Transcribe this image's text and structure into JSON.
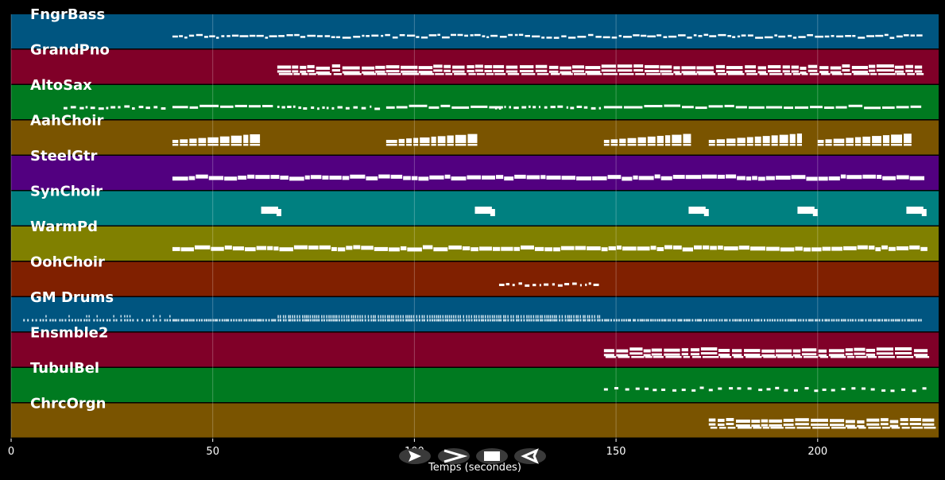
{
  "app": {
    "background": "#000000"
  },
  "timeline": {
    "x_label": "Temps (secondes)",
    "x_range": [
      0,
      230
    ],
    "ticks": [
      {
        "value": 0,
        "label": "0"
      },
      {
        "value": 50,
        "label": "50"
      },
      {
        "value": 100,
        "label": "100"
      },
      {
        "value": 150,
        "label": "150"
      },
      {
        "value": 200,
        "label": "200"
      }
    ],
    "grid": true
  },
  "tracks": [
    {
      "name": "FngrBass",
      "color": "#005580",
      "segments": [
        {
          "start": 40,
          "end": 226,
          "style": "dense"
        }
      ]
    },
    {
      "name": "GrandPno",
      "color": "#800028",
      "segments": [
        {
          "start": 66,
          "end": 226,
          "style": "chords"
        }
      ]
    },
    {
      "name": "AltoSax",
      "color": "#007a20",
      "segments": [
        {
          "start": 13,
          "end": 38,
          "style": "dots"
        },
        {
          "start": 40,
          "end": 65,
          "style": "line"
        },
        {
          "start": 66,
          "end": 92,
          "style": "dots"
        },
        {
          "start": 93,
          "end": 119,
          "style": "line"
        },
        {
          "start": 120,
          "end": 146,
          "style": "dots"
        },
        {
          "start": 147,
          "end": 225,
          "style": "line"
        }
      ]
    },
    {
      "name": "AahChoir",
      "color": "#7a5400",
      "segments": [
        {
          "start": 40,
          "end": 62,
          "style": "blocks"
        },
        {
          "start": 93,
          "end": 115,
          "style": "blocks"
        },
        {
          "start": 147,
          "end": 168,
          "style": "blocks"
        },
        {
          "start": 173,
          "end": 195,
          "style": "blocks"
        },
        {
          "start": 200,
          "end": 222,
          "style": "blocks"
        }
      ]
    },
    {
      "name": "SteelGtr",
      "color": "#520080",
      "segments": [
        {
          "start": 40,
          "end": 226,
          "style": "thick"
        }
      ]
    },
    {
      "name": "SynChoir",
      "color": "#008080",
      "segments": [
        {
          "start": 62,
          "end": 67,
          "style": "pad"
        },
        {
          "start": 115,
          "end": 120,
          "style": "pad"
        },
        {
          "start": 168,
          "end": 173,
          "style": "pad"
        },
        {
          "start": 195,
          "end": 200,
          "style": "pad"
        },
        {
          "start": 222,
          "end": 227,
          "style": "pad"
        }
      ]
    },
    {
      "name": "WarmPd",
      "color": "#808000",
      "segments": [
        {
          "start": 40,
          "end": 226,
          "style": "thick"
        }
      ]
    },
    {
      "name": "OohChoir",
      "color": "#802000",
      "segments": [
        {
          "start": 121,
          "end": 146,
          "style": "dots"
        }
      ]
    },
    {
      "name": "GM Drums",
      "color": "#005580",
      "segments": [
        {
          "start": 3,
          "end": 40,
          "style": "sparse"
        },
        {
          "start": 40,
          "end": 226,
          "style": "drums"
        }
      ]
    },
    {
      "name": "Ensmble2",
      "color": "#800028",
      "segments": [
        {
          "start": 147,
          "end": 226,
          "style": "chords"
        }
      ]
    },
    {
      "name": "TubulBel",
      "color": "#007a20",
      "segments": [
        {
          "start": 147,
          "end": 226,
          "style": "dashes"
        }
      ]
    },
    {
      "name": "ChrcOrgn",
      "color": "#7a5400",
      "segments": [
        {
          "start": 173,
          "end": 226,
          "style": "chords"
        }
      ]
    }
  ],
  "controls": [
    {
      "name": "play-button",
      "icon": "play-icon"
    },
    {
      "name": "forward-button",
      "icon": "chevron-right-icon"
    },
    {
      "name": "stop-button",
      "icon": "stop-icon"
    },
    {
      "name": "rewind-button",
      "icon": "rewind-icon"
    }
  ]
}
